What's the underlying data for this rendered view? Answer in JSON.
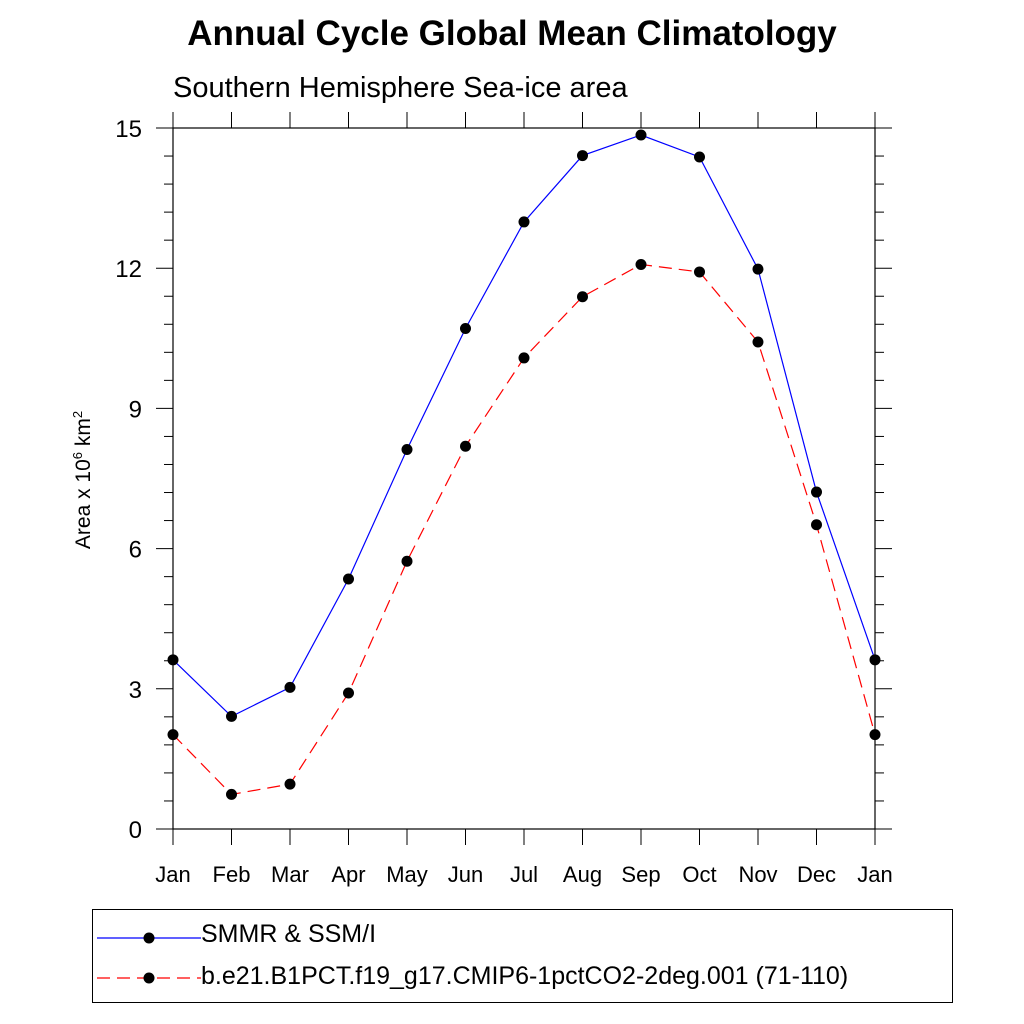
{
  "chart_data": {
    "type": "line",
    "title": "Annual Cycle Global Mean Climatology",
    "subtitle": "Southern Hemisphere Sea-ice area",
    "ylabel_base": "Area x 10",
    "ylabel_exp1": "6",
    "ylabel_unit": " km",
    "ylabel_exp2": "2",
    "categories": [
      "Jan",
      "Feb",
      "Mar",
      "Apr",
      "May",
      "Jun",
      "Jul",
      "Aug",
      "Sep",
      "Oct",
      "Nov",
      "Dec",
      "Jan"
    ],
    "ylim": [
      0,
      15
    ],
    "yticks": [
      "0",
      "3",
      "6",
      "9",
      "12",
      "15"
    ],
    "series": [
      {
        "name": "SMMR & SSM/I",
        "color": "#0000ff",
        "dash": "solid",
        "values": [
          3.62,
          2.41,
          3.03,
          5.35,
          8.12,
          10.71,
          12.99,
          14.41,
          14.85,
          14.38,
          11.98,
          7.21,
          3.62
        ]
      },
      {
        "name": "b.e21.B1PCT.f19_g17.CMIP6-1pctCO2-2deg.001 (71-110)",
        "color": "#ff0000",
        "dash": "dashed",
        "values": [
          2.02,
          0.74,
          0.96,
          2.91,
          5.73,
          8.19,
          10.08,
          11.39,
          12.08,
          11.92,
          10.42,
          6.51,
          2.02
        ]
      }
    ],
    "grid": false,
    "legend_position": "bottom"
  }
}
